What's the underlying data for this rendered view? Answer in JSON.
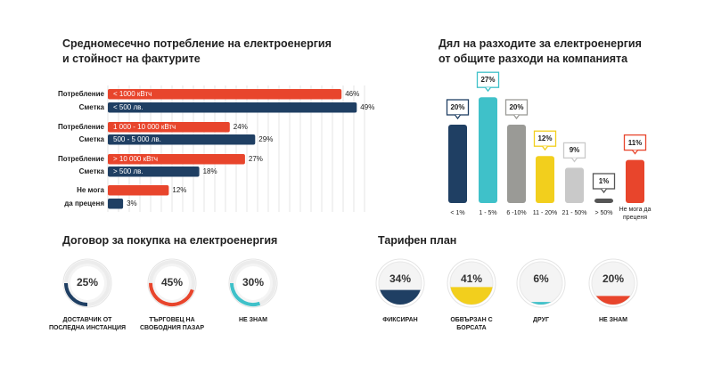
{
  "titles": {
    "consumption": [
      "Средномесечно потребление на електроенергия",
      "и стойност на фактурите"
    ],
    "share": [
      "Дял на разходите за електроенергия",
      "от общите разходи на компанията"
    ],
    "contract": "Договор за покупка на електроенергия",
    "tariff": "Тарифен план"
  },
  "chart_data": [
    {
      "type": "bar",
      "orientation": "horizontal",
      "rows": [
        {
          "label": "Потребление",
          "bar_label": "< 1000 кВтч",
          "value": 46,
          "value_label": "46%",
          "color": "#e8452c"
        },
        {
          "label": "Сметка",
          "bar_label": "< 500 лв.",
          "value": 49,
          "value_label": "49%",
          "color": "#1f3f63"
        },
        {
          "label": "Потребление",
          "bar_label": "1 000 - 10 000 кВтч",
          "value": 24,
          "value_label": "24%",
          "color": "#e8452c"
        },
        {
          "label": "Сметка",
          "bar_label": "500 - 5 000 лв.",
          "value": 29,
          "value_label": "29%",
          "color": "#1f3f63"
        },
        {
          "label": "Потребление",
          "bar_label": "> 10 000 кВтч",
          "value": 27,
          "value_label": "27%",
          "color": "#e8452c"
        },
        {
          "label": "Сметка",
          "bar_label": "> 500 лв.",
          "value": 18,
          "value_label": "18%",
          "color": "#1f3f63"
        },
        {
          "label": "Не мога",
          "bar_label": "",
          "value": 12,
          "value_label": "12%",
          "color": "#e8452c"
        },
        {
          "label": "да преценя",
          "bar_label": "",
          "value": 3,
          "value_label": "3%",
          "color": "#1f3f63"
        }
      ],
      "xlim": [
        0,
        50
      ],
      "grid": true
    },
    {
      "type": "bar",
      "orientation": "vertical",
      "categories": [
        "< 1%",
        "1 - 5%",
        "6 -10%",
        "11 - 20%",
        "21 - 50%",
        "> 50%",
        "Не мога да преценя"
      ],
      "values": [
        20,
        27,
        20,
        12,
        9,
        1,
        11
      ],
      "value_labels": [
        "20%",
        "27%",
        "20%",
        "12%",
        "9%",
        "1%",
        "11%"
      ],
      "colors": [
        "#1f3f63",
        "#3fc1c9",
        "#9a9a96",
        "#f2cf1d",
        "#c9c9c9",
        "#555555",
        "#e8452c"
      ],
      "ylim": [
        0,
        30
      ]
    },
    {
      "type": "pie",
      "style": "ring",
      "slices": [
        {
          "label": "ДОСТАВЧИК ОТ ПОСЛЕДНА ИНСТАНЦИЯ",
          "value": 25,
          "value_label": "25%",
          "color": "#1f3f63"
        },
        {
          "label": "ТЪРГОВЕЦ НА СВОБОДНИЯ ПАЗАР",
          "value": 45,
          "value_label": "45%",
          "color": "#e8452c"
        },
        {
          "label": "НЕ ЗНАМ",
          "value": 30,
          "value_label": "30%",
          "color": "#3fc1c9"
        }
      ]
    },
    {
      "type": "pie",
      "style": "fill-level",
      "slices": [
        {
          "label": "ФИКСИРАН",
          "value": 34,
          "value_label": "34%",
          "color": "#1f3f63"
        },
        {
          "label": "ОБВЪРЗАН С БОРСАТА",
          "value": 41,
          "value_label": "41%",
          "color": "#f2cf1d"
        },
        {
          "label": "ДРУГ",
          "value": 6,
          "value_label": "6%",
          "color": "#3fc1c9"
        },
        {
          "label": "НЕ ЗНАМ",
          "value": 20,
          "value_label": "20%",
          "color": "#e8452c"
        }
      ]
    }
  ]
}
